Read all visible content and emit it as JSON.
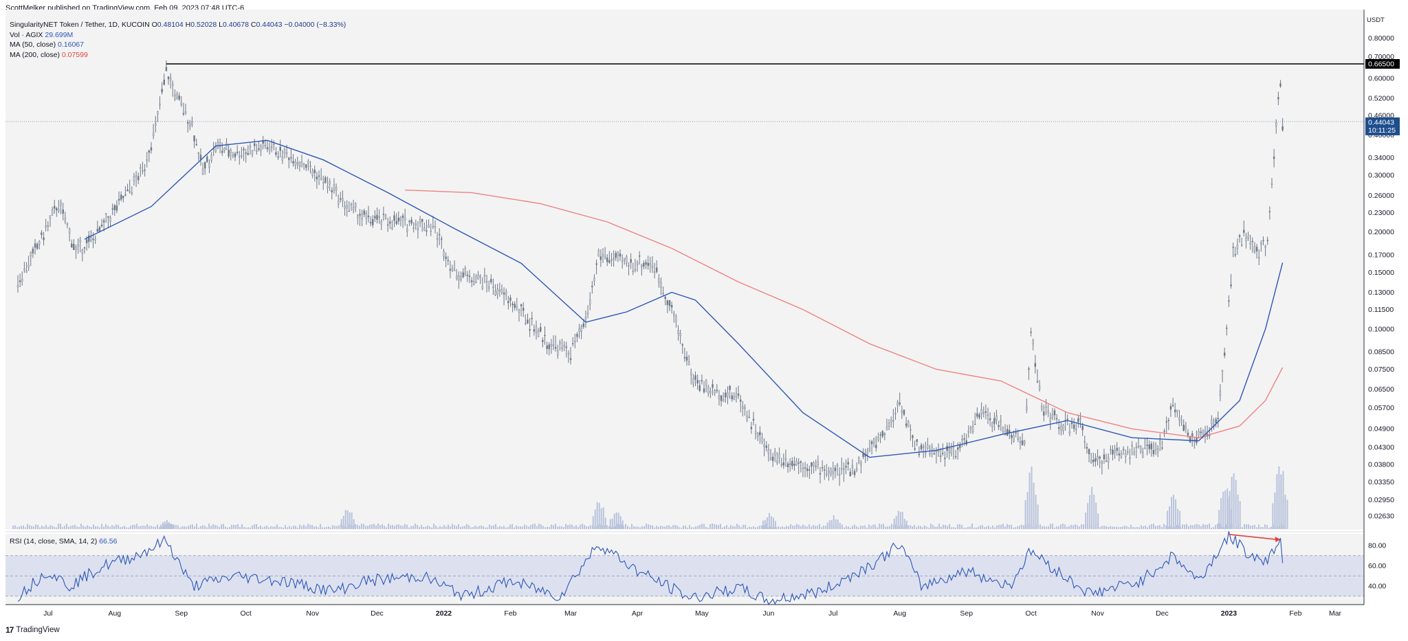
{
  "publisher": "ScottMelker published on TradingView.com, Feb 09, 2023 07:48 UTC-6",
  "legend": {
    "symbol": "SingularityNET Token / Tether, 1D, KUCOIN",
    "ohlc": [
      {
        "label": "O",
        "value": "0.48104"
      },
      {
        "label": "H",
        "value": "0.52028"
      },
      {
        "label": "L",
        "value": "0.40678"
      },
      {
        "label": "C",
        "value": "0.44043"
      }
    ],
    "change": "−0.04000 (−8.33%)",
    "volume_label": "Vol · AGIX",
    "volume_value": "29.699M",
    "ma50_label": "MA (50, close)",
    "ma50_value": "0.16067",
    "ma200_label": "MA (200, close)",
    "ma200_value": "0.07599"
  },
  "rsi_legend": {
    "label": "RSI (14, close, SMA, 14, 2)",
    "value": "66.56"
  },
  "footer": {
    "logo_mark": "17",
    "brand": "TradingView"
  },
  "colors": {
    "background": "#f3f3f3",
    "candle": "#6b7686",
    "ma50": "#2c56b8",
    "ma200": "#f08080",
    "volume": "#b9c3dc",
    "rsi_line": "#2c56b8",
    "rsi_band": "#dde1ef",
    "resistance": "#000000",
    "last_price": "#1e4e8c",
    "divergence_arrow": "#e0433d"
  },
  "chart_data": {
    "type": "candlestick",
    "y_scale": "log",
    "y_unit_label": "USDT",
    "y_ticks": [
      "0.80000",
      "0.70000",
      "0.60000",
      "0.52000",
      "0.46000",
      "0.40000",
      "0.34000",
      "0.30000",
      "0.26000",
      "0.23000",
      "0.20000",
      "0.17000",
      "0.15000",
      "0.13000",
      "0.11500",
      "0.10000",
      "0.08500",
      "0.07500",
      "0.06500",
      "0.05700",
      "0.04900",
      "0.04300",
      "0.03800",
      "0.03350",
      "0.02950",
      "0.02630"
    ],
    "x_ticks": [
      "Jul",
      "Aug",
      "Sep",
      "Oct",
      "Nov",
      "Dec",
      "2022",
      "Feb",
      "Mar",
      "Apr",
      "May",
      "Jun",
      "Jul",
      "Aug",
      "Sep",
      "Oct",
      "Nov",
      "Dec",
      "2023",
      "Feb",
      "Mar"
    ],
    "x_range": [
      "2021-07-01",
      "2023-03-15"
    ],
    "resistance_level": {
      "value": 0.665,
      "label": "0.66500"
    },
    "last_price": {
      "value": 0.44043,
      "label": "0.44043",
      "countdown": "10:11:25"
    },
    "price_path": [
      [
        "2021-07-01",
        0.14
      ],
      [
        "2021-07-10",
        0.18
      ],
      [
        "2021-07-20",
        0.245
      ],
      [
        "2021-07-28",
        0.175
      ],
      [
        "2021-08-05",
        0.19
      ],
      [
        "2021-08-20",
        0.26
      ],
      [
        "2021-08-28",
        0.31
      ],
      [
        "2021-09-03",
        0.42
      ],
      [
        "2021-09-08",
        0.63
      ],
      [
        "2021-09-13",
        0.52
      ],
      [
        "2021-09-20",
        0.43
      ],
      [
        "2021-09-25",
        0.31
      ],
      [
        "2021-10-01",
        0.37
      ],
      [
        "2021-10-10",
        0.35
      ],
      [
        "2021-10-25",
        0.37
      ],
      [
        "2021-11-10",
        0.33
      ],
      [
        "2021-11-25",
        0.27
      ],
      [
        "2021-12-01",
        0.24
      ],
      [
        "2021-12-10",
        0.22
      ],
      [
        "2021-12-25",
        0.215
      ],
      [
        "2022-01-10",
        0.21
      ],
      [
        "2022-01-20",
        0.15
      ],
      [
        "2022-02-05",
        0.14
      ],
      [
        "2022-02-20",
        0.113
      ],
      [
        "2022-03-05",
        0.09
      ],
      [
        "2022-03-15",
        0.085
      ],
      [
        "2022-03-22",
        0.105
      ],
      [
        "2022-03-28",
        0.17
      ],
      [
        "2022-04-10",
        0.16
      ],
      [
        "2022-04-22",
        0.16
      ],
      [
        "2022-05-01",
        0.115
      ],
      [
        "2022-05-11",
        0.07
      ],
      [
        "2022-05-20",
        0.064
      ],
      [
        "2022-06-01",
        0.062
      ],
      [
        "2022-06-15",
        0.041
      ],
      [
        "2022-07-01",
        0.038
      ],
      [
        "2022-07-15",
        0.036
      ],
      [
        "2022-07-25",
        0.037
      ],
      [
        "2022-08-10",
        0.05
      ],
      [
        "2022-08-15",
        0.06
      ],
      [
        "2022-08-22",
        0.043
      ],
      [
        "2022-09-01",
        0.042
      ],
      [
        "2022-09-10",
        0.041
      ],
      [
        "2022-09-22",
        0.055
      ],
      [
        "2022-10-05",
        0.048
      ],
      [
        "2022-10-12",
        0.044
      ],
      [
        "2022-10-15",
        0.1
      ],
      [
        "2022-10-20",
        0.057
      ],
      [
        "2022-10-30",
        0.05
      ],
      [
        "2022-11-08",
        0.05
      ],
      [
        "2022-11-12",
        0.038
      ],
      [
        "2022-11-25",
        0.042
      ],
      [
        "2022-12-05",
        0.042
      ],
      [
        "2022-12-15",
        0.043
      ],
      [
        "2022-12-20",
        0.06
      ],
      [
        "2022-12-28",
        0.045
      ],
      [
        "2023-01-05",
        0.048
      ],
      [
        "2023-01-10",
        0.052
      ],
      [
        "2023-01-13",
        0.085
      ],
      [
        "2023-01-17",
        0.17
      ],
      [
        "2023-01-22",
        0.2
      ],
      [
        "2023-01-28",
        0.17
      ],
      [
        "2023-02-02",
        0.19
      ],
      [
        "2023-02-05",
        0.35
      ],
      [
        "2023-02-07",
        0.5
      ],
      [
        "2023-02-08",
        0.58
      ],
      [
        "2023-02-09",
        0.44043
      ]
    ],
    "ma50_path": [
      [
        "2021-08-01",
        0.19
      ],
      [
        "2021-09-01",
        0.24
      ],
      [
        "2021-10-01",
        0.37
      ],
      [
        "2021-10-25",
        0.385
      ],
      [
        "2021-11-20",
        0.335
      ],
      [
        "2021-12-20",
        0.265
      ],
      [
        "2022-01-20",
        0.205
      ],
      [
        "2022-02-20",
        0.16
      ],
      [
        "2022-03-22",
        0.105
      ],
      [
        "2022-04-10",
        0.113
      ],
      [
        "2022-05-01",
        0.13
      ],
      [
        "2022-05-12",
        0.123
      ],
      [
        "2022-06-01",
        0.09
      ],
      [
        "2022-07-01",
        0.055
      ],
      [
        "2022-08-01",
        0.04
      ],
      [
        "2022-09-01",
        0.042
      ],
      [
        "2022-10-01",
        0.047
      ],
      [
        "2022-11-01",
        0.052
      ],
      [
        "2022-12-01",
        0.046
      ],
      [
        "2023-01-01",
        0.045
      ],
      [
        "2023-01-20",
        0.06
      ],
      [
        "2023-02-01",
        0.1
      ],
      [
        "2023-02-09",
        0.16067
      ]
    ],
    "ma200_path": [
      [
        "2021-12-28",
        0.27
      ],
      [
        "2022-01-28",
        0.265
      ],
      [
        "2022-03-01",
        0.245
      ],
      [
        "2022-04-01",
        0.215
      ],
      [
        "2022-05-01",
        0.178
      ],
      [
        "2022-06-01",
        0.14
      ],
      [
        "2022-07-01",
        0.115
      ],
      [
        "2022-08-01",
        0.09
      ],
      [
        "2022-09-01",
        0.075
      ],
      [
        "2022-10-01",
        0.069
      ],
      [
        "2022-11-01",
        0.055
      ],
      [
        "2022-12-01",
        0.049
      ],
      [
        "2023-01-01",
        0.046
      ],
      [
        "2023-01-20",
        0.05
      ],
      [
        "2023-02-01",
        0.06
      ],
      [
        "2023-02-09",
        0.07599
      ]
    ],
    "volume_spikes": [
      [
        "2021-09-08",
        0.15
      ],
      [
        "2021-12-01",
        0.35
      ],
      [
        "2022-03-28",
        0.45
      ],
      [
        "2022-04-05",
        0.3
      ],
      [
        "2022-06-15",
        0.25
      ],
      [
        "2022-07-15",
        0.2
      ],
      [
        "2022-08-15",
        0.3
      ],
      [
        "2022-10-15",
        0.95
      ],
      [
        "2022-11-12",
        0.6
      ],
      [
        "2022-12-20",
        0.55
      ],
      [
        "2023-01-13",
        0.7
      ],
      [
        "2023-01-17",
        0.95
      ],
      [
        "2023-02-07",
        0.9
      ],
      [
        "2023-02-08",
        1.0
      ]
    ],
    "rsi": {
      "y_ticks": [
        "80.00",
        "60.00",
        "40.00"
      ],
      "upper_band": 70,
      "lower_band": 30,
      "middle": 50,
      "path": [
        [
          "2021-07-01",
          30
        ],
        [
          "2021-07-15",
          55
        ],
        [
          "2021-07-25",
          40
        ],
        [
          "2021-08-10",
          60
        ],
        [
          "2021-08-25",
          70
        ],
        [
          "2021-09-08",
          85
        ],
        [
          "2021-09-20",
          40
        ],
        [
          "2021-10-10",
          50
        ],
        [
          "2021-11-01",
          45
        ],
        [
          "2021-11-25",
          35
        ],
        [
          "2021-12-10",
          45
        ],
        [
          "2022-01-05",
          50
        ],
        [
          "2022-01-25",
          30
        ],
        [
          "2022-02-15",
          45
        ],
        [
          "2022-03-10",
          30
        ],
        [
          "2022-03-28",
          82
        ],
        [
          "2022-04-15",
          55
        ],
        [
          "2022-05-10",
          28
        ],
        [
          "2022-06-01",
          38
        ],
        [
          "2022-06-15",
          25
        ],
        [
          "2022-07-10",
          35
        ],
        [
          "2022-08-05",
          65
        ],
        [
          "2022-08-15",
          82
        ],
        [
          "2022-08-25",
          40
        ],
        [
          "2022-09-15",
          55
        ],
        [
          "2022-10-05",
          40
        ],
        [
          "2022-10-15",
          75
        ],
        [
          "2022-10-30",
          50
        ],
        [
          "2022-11-12",
          32
        ],
        [
          "2022-12-05",
          45
        ],
        [
          "2022-12-20",
          70
        ],
        [
          "2023-01-01",
          45
        ],
        [
          "2023-01-15",
          90
        ],
        [
          "2023-01-25",
          70
        ],
        [
          "2023-02-02",
          65
        ],
        [
          "2023-02-08",
          88
        ],
        [
          "2023-02-09",
          66.56
        ]
      ],
      "divergence_arrow": [
        [
          "2023-01-15",
          91
        ],
        [
          "2023-02-08",
          86
        ]
      ]
    }
  }
}
